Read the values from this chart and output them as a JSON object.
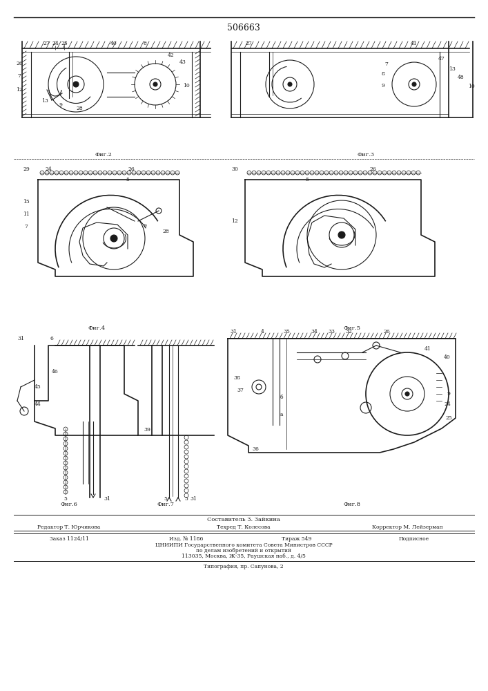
{
  "patent_number": "506663",
  "background_color": "#ffffff",
  "line_color": "#1a1a1a",
  "figsize": [
    7.07,
    10.0
  ],
  "dpi": 100,
  "footer_lines": [
    "Составитель З. Зайкина",
    "Редактор Т. Юрчикова         Техред Т. Колесова         Корректор М. Лейзерман",
    "Заказ 1124/11         Изд. № 1186         Тираж 549         Подписное",
    "ЦНИИПИ Государственного комитета Совета Министров СССР",
    "по делам изобретений и открытий",
    "113035, Москва, Ж-35, Раушская наб., д. 4/5",
    "Типография, пр. Сапунова, 2"
  ]
}
